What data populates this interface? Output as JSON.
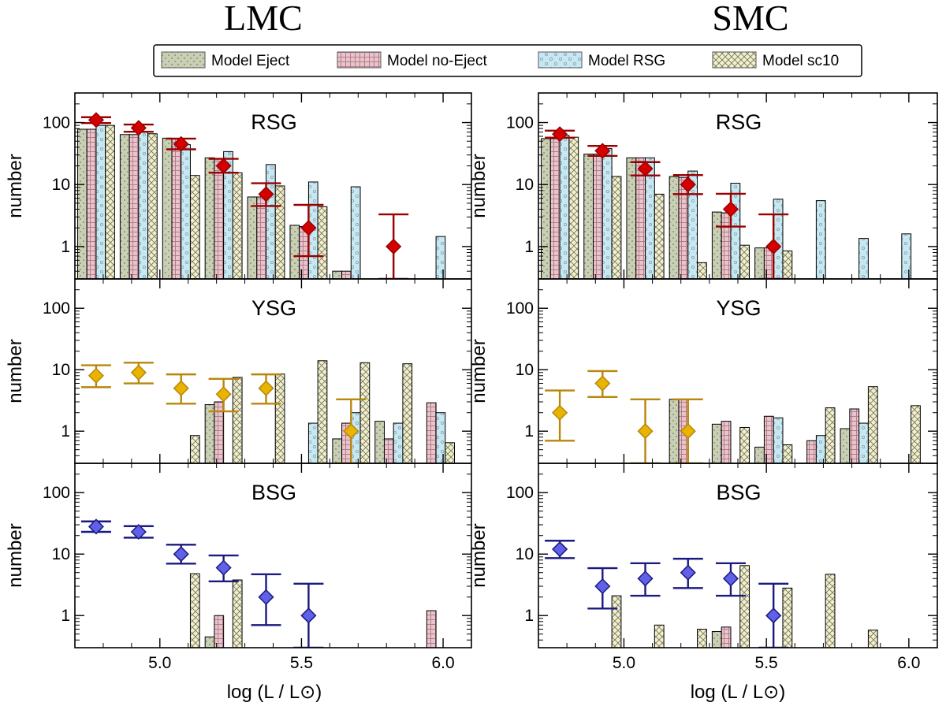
{
  "chart_data": {
    "type": "bar",
    "titles": {
      "lmc": "LMC",
      "smc": "SMC"
    },
    "xlabel": "log (L / L⊙)",
    "ylabel": "number",
    "xlim": [
      4.7,
      6.1
    ],
    "ylim": [
      0.3,
      300
    ],
    "yscale": "log",
    "xticks": [
      5.0,
      5.5,
      6.0
    ],
    "xtick_labels": [
      "5.0",
      "5.5",
      "6.0"
    ],
    "yticks": [
      1,
      10,
      100
    ],
    "ytick_labels": [
      "1",
      "10",
      "100"
    ],
    "legend": {
      "position": "top-center",
      "entries": [
        {
          "name": "Model Eject",
          "color": "#c8cfb4"
        },
        {
          "name": "Model no-Eject",
          "color": "#e8c4cc"
        },
        {
          "name": "Model RSG",
          "color": "#c4e8f4"
        },
        {
          "name": "Model sc10",
          "color": "#f2f0c4"
        }
      ]
    },
    "bin_centers": [
      4.775,
      4.925,
      5.075,
      5.225,
      5.375,
      5.525,
      5.675,
      5.825,
      5.975
    ],
    "series_colors": {
      "RSG": "#d40000",
      "YSG": "#e8b400",
      "BSG": "#6060e8"
    },
    "errorbar_colors": {
      "RSG": "#990000",
      "YSG": "#b8860b",
      "BSG": "#1a1a80"
    },
    "panels": [
      {
        "galaxy": "LMC",
        "type": "RSG",
        "model_eject": [
          78,
          64,
          56,
          27,
          6.3,
          2.2,
          0.4,
          null,
          null
        ],
        "model_noeject": [
          78,
          64,
          55,
          26,
          6.3,
          2.1,
          0.4,
          null,
          null
        ],
        "model_rsg": [
          90,
          70,
          44,
          34,
          21,
          11,
          9.2,
          null,
          1.45
        ],
        "model_sc10": [
          90,
          66,
          14,
          15.5,
          9.5,
          4.4,
          null,
          null,
          null
        ],
        "observed": [
          {
            "x": 4.775,
            "y": 110,
            "lo": 98,
            "hi": 122
          },
          {
            "x": 4.925,
            "y": 82,
            "lo": 71,
            "hi": 93
          },
          {
            "x": 5.075,
            "y": 45,
            "lo": 37,
            "hi": 55
          },
          {
            "x": 5.225,
            "y": 20,
            "lo": 15.5,
            "hi": 26
          },
          {
            "x": 5.375,
            "y": 7,
            "lo": 4.5,
            "hi": 10.5
          },
          {
            "x": 5.525,
            "y": 2,
            "lo": 0.7,
            "hi": 4.7
          },
          {
            "x": 5.825,
            "y": 1,
            "lo": 0.3,
            "hi": 3.3
          }
        ]
      },
      {
        "galaxy": "LMC",
        "type": "YSG",
        "model_eject": [
          null,
          null,
          null,
          2.7,
          null,
          null,
          0.75,
          1.45,
          null
        ],
        "model_noeject": [
          null,
          null,
          null,
          3.0,
          null,
          null,
          1.35,
          0.75,
          2.9
        ],
        "model_rsg": [
          null,
          null,
          null,
          null,
          null,
          1.35,
          2.0,
          1.35,
          2.0
        ],
        "model_sc10": [
          null,
          null,
          0.85,
          7.5,
          8.5,
          14,
          13,
          12.5,
          0.65
        ],
        "observed": [
          {
            "x": 4.775,
            "y": 8,
            "lo": 5.2,
            "hi": 11.8
          },
          {
            "x": 4.925,
            "y": 9,
            "lo": 6.0,
            "hi": 13
          },
          {
            "x": 5.075,
            "y": 5,
            "lo": 2.8,
            "hi": 8.4
          },
          {
            "x": 5.225,
            "y": 4,
            "lo": 2.1,
            "hi": 7.1
          },
          {
            "x": 5.375,
            "y": 5,
            "lo": 2.8,
            "hi": 8.4
          },
          {
            "x": 5.675,
            "y": 1,
            "lo": 0.3,
            "hi": 3.3
          }
        ]
      },
      {
        "galaxy": "LMC",
        "type": "BSG",
        "model_eject": [
          null,
          null,
          null,
          0.45,
          null,
          null,
          null,
          null,
          null
        ],
        "model_noeject": [
          null,
          null,
          null,
          1.0,
          null,
          null,
          null,
          null,
          1.2
        ],
        "model_rsg": [
          null,
          null,
          null,
          null,
          null,
          null,
          null,
          null,
          null
        ],
        "model_sc10": [
          null,
          null,
          4.8,
          3.8,
          null,
          null,
          null,
          null,
          null
        ],
        "observed": [
          {
            "x": 4.775,
            "y": 28,
            "lo": 23,
            "hi": 34
          },
          {
            "x": 4.925,
            "y": 23,
            "lo": 18.5,
            "hi": 28.5
          },
          {
            "x": 5.075,
            "y": 10,
            "lo": 7,
            "hi": 14.2
          },
          {
            "x": 5.225,
            "y": 6,
            "lo": 3.6,
            "hi": 9.5
          },
          {
            "x": 5.375,
            "y": 2,
            "lo": 0.7,
            "hi": 4.7
          },
          {
            "x": 5.525,
            "y": 1,
            "lo": 0.3,
            "hi": 3.3
          }
        ]
      },
      {
        "galaxy": "SMC",
        "type": "RSG",
        "model_eject": [
          55,
          31,
          27,
          13.5,
          3.6,
          0.95,
          null,
          null,
          null
        ],
        "model_noeject": [
          55,
          31,
          27,
          13,
          3.5,
          0.95,
          null,
          null,
          null
        ],
        "model_rsg": [
          62,
          38,
          27,
          16.5,
          10.5,
          5.8,
          5.5,
          1.35,
          1.6
        ],
        "model_sc10": [
          58,
          13.5,
          7,
          0.55,
          1.05,
          0.85,
          null,
          null,
          null
        ],
        "observed": [
          {
            "x": 4.775,
            "y": 65,
            "lo": 57,
            "hi": 74
          },
          {
            "x": 4.925,
            "y": 35,
            "lo": 29,
            "hi": 42
          },
          {
            "x": 5.075,
            "y": 18,
            "lo": 14,
            "hi": 23
          },
          {
            "x": 5.225,
            "y": 10,
            "lo": 7,
            "hi": 14.2
          },
          {
            "x": 5.375,
            "y": 4,
            "lo": 2.1,
            "hi": 7.1
          },
          {
            "x": 5.525,
            "y": 1,
            "lo": 0.3,
            "hi": 3.3
          }
        ]
      },
      {
        "galaxy": "SMC",
        "type": "YSG",
        "model_eject": [
          null,
          null,
          null,
          3.3,
          1.3,
          0.55,
          null,
          1.1,
          null
        ],
        "model_noeject": [
          null,
          null,
          null,
          3.3,
          1.45,
          1.75,
          0.7,
          2.3,
          null
        ],
        "model_rsg": [
          null,
          null,
          null,
          null,
          null,
          1.65,
          0.85,
          1.35,
          null
        ],
        "model_sc10": [
          null,
          null,
          null,
          null,
          1.15,
          0.6,
          2.4,
          5.3,
          2.6
        ],
        "observed": [
          {
            "x": 4.775,
            "y": 2,
            "lo": 0.7,
            "hi": 4.6
          },
          {
            "x": 4.925,
            "y": 6,
            "lo": 3.6,
            "hi": 9.5
          },
          {
            "x": 5.075,
            "y": 1,
            "lo": 0.3,
            "hi": 3.3
          },
          {
            "x": 5.225,
            "y": 1,
            "lo": 0.3,
            "hi": 3.3
          }
        ]
      },
      {
        "galaxy": "SMC",
        "type": "BSG",
        "model_eject": [
          null,
          null,
          null,
          null,
          0.55,
          null,
          null,
          null,
          null
        ],
        "model_noeject": [
          null,
          null,
          null,
          null,
          0.65,
          null,
          null,
          null,
          null
        ],
        "model_rsg": [
          null,
          null,
          null,
          null,
          null,
          null,
          null,
          null,
          null
        ],
        "model_sc10": [
          null,
          2.1,
          0.7,
          0.6,
          6.5,
          2.8,
          4.7,
          0.58,
          null
        ],
        "observed": [
          {
            "x": 4.775,
            "y": 12,
            "lo": 8.6,
            "hi": 16.5
          },
          {
            "x": 4.925,
            "y": 3,
            "lo": 1.3,
            "hi": 5.9
          },
          {
            "x": 5.075,
            "y": 4,
            "lo": 2.1,
            "hi": 7.1
          },
          {
            "x": 5.225,
            "y": 5,
            "lo": 2.8,
            "hi": 8.4
          },
          {
            "x": 5.375,
            "y": 4,
            "lo": 2.1,
            "hi": 7.1
          },
          {
            "x": 5.525,
            "y": 1,
            "lo": 0.3,
            "hi": 3.3
          }
        ]
      }
    ]
  }
}
